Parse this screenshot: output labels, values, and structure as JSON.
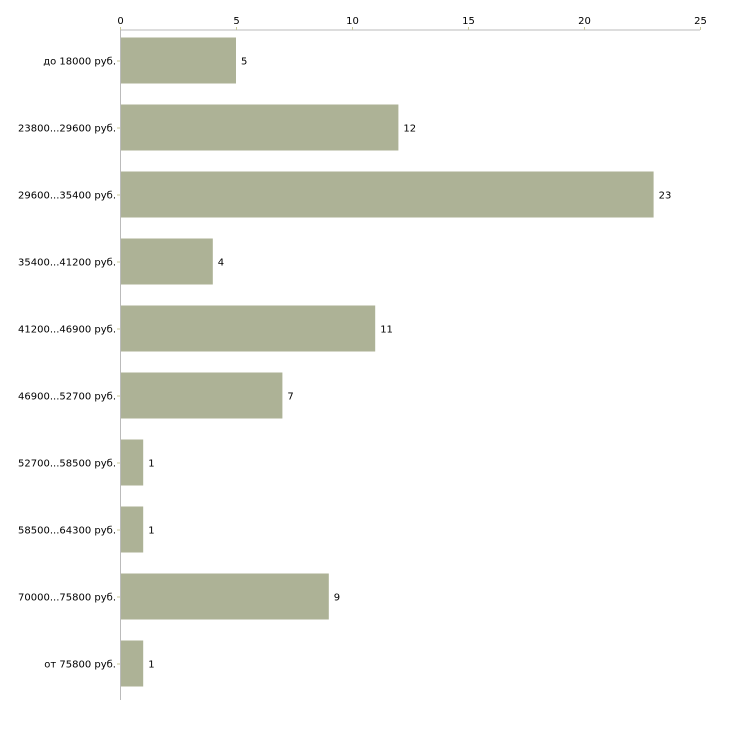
{
  "chart_data": {
    "type": "bar",
    "orientation": "horizontal",
    "title": "",
    "xlabel": "",
    "ylabel": "",
    "xlim": [
      0,
      25
    ],
    "xticks": [
      0,
      5,
      10,
      15,
      20,
      25
    ],
    "categories": [
      "до 18000 руб.",
      "23800...29600 руб.",
      "29600...35400 руб.",
      "35400...41200 руб.",
      "41200...46900 руб.",
      "46900...52700 руб.",
      "52700...58500 руб.",
      "58500...64300 руб.",
      "70000...75800 руб.",
      "от 75800 руб."
    ],
    "values": [
      5,
      12,
      23,
      4,
      11,
      7,
      1,
      1,
      9,
      1
    ],
    "grid": false,
    "bar_color": "#adb296",
    "axis_color": "#bbbbbb"
  }
}
